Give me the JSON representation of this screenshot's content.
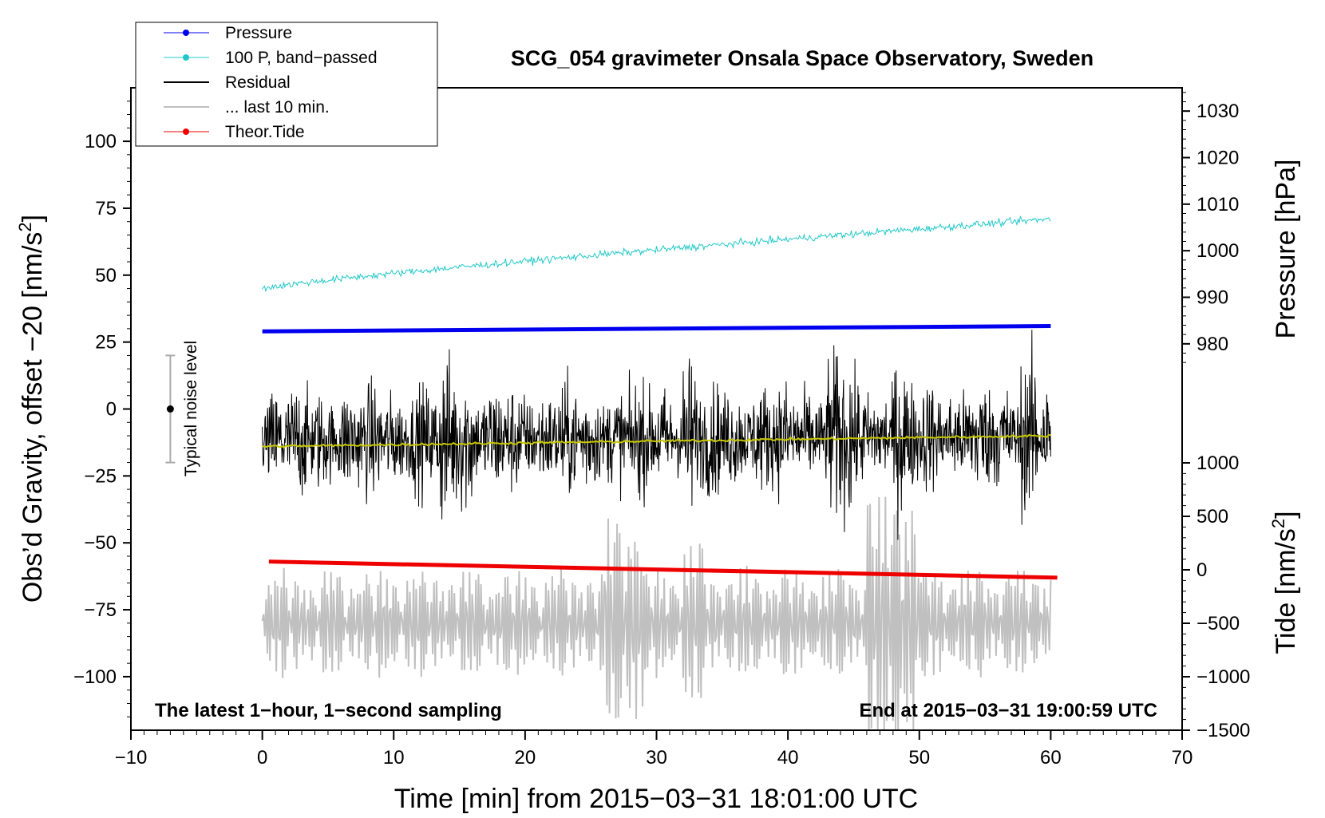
{
  "chart_data": {
    "type": "line",
    "title": "SCG_054 gravimeter Onsala Space Observatory, Sweden",
    "xlabel": "Time [min] from 2015−03−31 18:01:00 UTC",
    "ylabel_left_main": "Obs’d Gravity, offset −20 [nm/s",
    "ylabel_left_sup": "2",
    "ylabel_left_end": "]",
    "ylabel_right_pressure": "Pressure [hPa]",
    "ylabel_right_tide_main": "Tide [nm/s",
    "ylabel_right_tide_sup": "2",
    "ylabel_right_tide_end": "]",
    "xlim": [
      -10,
      70
    ],
    "ylim": [
      -120,
      120
    ],
    "x_ticks": [
      -10,
      0,
      10,
      20,
      30,
      40,
      50,
      60,
      70
    ],
    "x_tick_labels": [
      "−10",
      "0",
      "10",
      "20",
      "30",
      "40",
      "50",
      "60",
      "70"
    ],
    "y_ticks": [
      100,
      75,
      50,
      25,
      0,
      -25,
      -50,
      -75,
      -100
    ],
    "y_tick_labels": [
      "100",
      "75",
      "50",
      "25",
      "0",
      "−25",
      "−50",
      "−75",
      "−100"
    ],
    "pressure_axis": {
      "ticks": [
        1030,
        1020,
        1010,
        1000,
        990,
        980
      ],
      "tick_labels": [
        "1030",
        "1020",
        "1010",
        "1000",
        "990",
        "980"
      ],
      "range": [
        975,
        1035
      ]
    },
    "tide_axis": {
      "ticks": [
        1000,
        500,
        0,
        -500,
        -1000,
        -1500
      ],
      "tick_labels": [
        "1000",
        "500",
        "0",
        "−500",
        "−1000",
        "−1500"
      ],
      "range": [
        -1500,
        1000
      ]
    },
    "legend": [
      {
        "label": "Pressure",
        "color": "#0000ee",
        "marker": true
      },
      {
        "label": "100 P, band−passed",
        "color": "#22c8c8",
        "marker": true
      },
      {
        "label": "Residual",
        "color": "#000000",
        "marker": false
      },
      {
        "label": "... last 10 min.",
        "color": "#c0c0c0",
        "marker": false
      },
      {
        "label": "Theor.Tide",
        "color": "#ee0000",
        "marker": true
      }
    ],
    "series": [
      {
        "name": "Pressure",
        "axis": "gravity",
        "x": [
          0,
          60
        ],
        "values": [
          29,
          31
        ]
      },
      {
        "name": "100 P, band−passed",
        "axis": "gravity",
        "x": [
          0,
          60
        ],
        "values": [
          45,
          71
        ]
      },
      {
        "name": "Residual",
        "axis": "gravity",
        "x": [
          0,
          60
        ],
        "values": [
          -12,
          -10
        ]
      },
      {
        "name": "Residual smoothed",
        "axis": "gravity",
        "x": [
          0,
          60
        ],
        "values": [
          -14,
          -10
        ]
      },
      {
        "name": "... last 10 min.",
        "axis": "gravity",
        "x": [
          0,
          60
        ],
        "values": [
          -80,
          -80
        ]
      },
      {
        "name": "Theor.Tide",
        "axis": "gravity",
        "x": [
          0.5,
          60.5
        ],
        "values": [
          -57,
          -63
        ]
      }
    ],
    "noise_bar": {
      "label": "Typical noise level",
      "x": -7,
      "center": 0,
      "low": -20,
      "high": 20
    },
    "annotation_left": "The latest 1−hour, 1−second sampling",
    "annotation_right": "End at 2015−03−31 19:00:59 UTC",
    "colors": {
      "pressure": "#0000ee",
      "band_passed": "#22c8c8",
      "residual": "#000000",
      "smoothed": "#c8c800",
      "last10": "#c0c0c0",
      "tide": "#ee0000"
    }
  }
}
